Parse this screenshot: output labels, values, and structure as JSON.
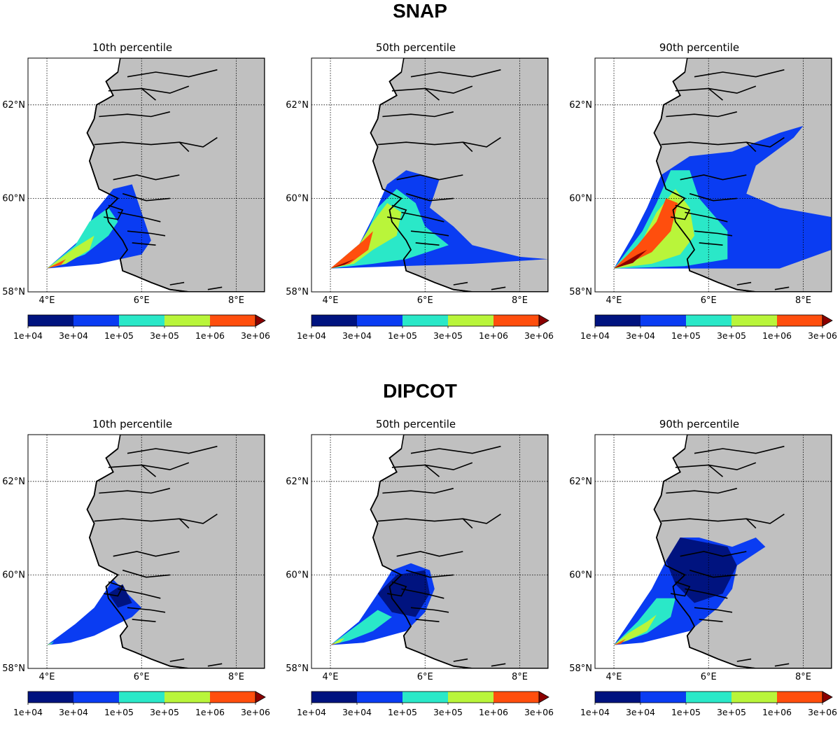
{
  "sections": [
    {
      "title": "SNAP"
    },
    {
      "title": "DIPCOT"
    }
  ],
  "colorbar": {
    "ticks": [
      "1e+04",
      "3e+04",
      "1e+05",
      "3e+05",
      "1e+06",
      "3e+06"
    ],
    "colors": [
      "#00137f",
      "#0a3cf2",
      "#2ae8c8",
      "#b9f53a",
      "#ff4e0d",
      "#8b0000"
    ],
    "extend": "max"
  },
  "map": {
    "land_color": "#c0c0c0",
    "coast_color": "#000000",
    "lat_labels": [
      "62°N",
      "60°N",
      "58°N"
    ],
    "lon_labels": [
      "4°E",
      "6°E",
      "8°E"
    ],
    "lon_range": [
      3.6,
      8.6
    ],
    "lat_range": [
      58.0,
      63.0
    ]
  },
  "chart_data": [
    {
      "type": "heatmap",
      "model": "SNAP",
      "title": "10th percentile",
      "extent": "small",
      "max_level": "1e+06"
    },
    {
      "type": "heatmap",
      "model": "SNAP",
      "title": "50th percentile",
      "extent": "medium",
      "max_level": ">3e+06"
    },
    {
      "type": "heatmap",
      "model": "SNAP",
      "title": "90th percentile",
      "extent": "large",
      "max_level": ">3e+06"
    },
    {
      "type": "heatmap",
      "model": "DIPCOT",
      "title": "10th percentile",
      "extent": "small",
      "max_level": "1e+06"
    },
    {
      "type": "heatmap",
      "model": "DIPCOT",
      "title": "50th percentile",
      "extent": "medium",
      "max_level": "1e+06"
    },
    {
      "type": "heatmap",
      "model": "DIPCOT",
      "title": "90th percentile",
      "extent": "large",
      "max_level": "1e+06"
    }
  ]
}
